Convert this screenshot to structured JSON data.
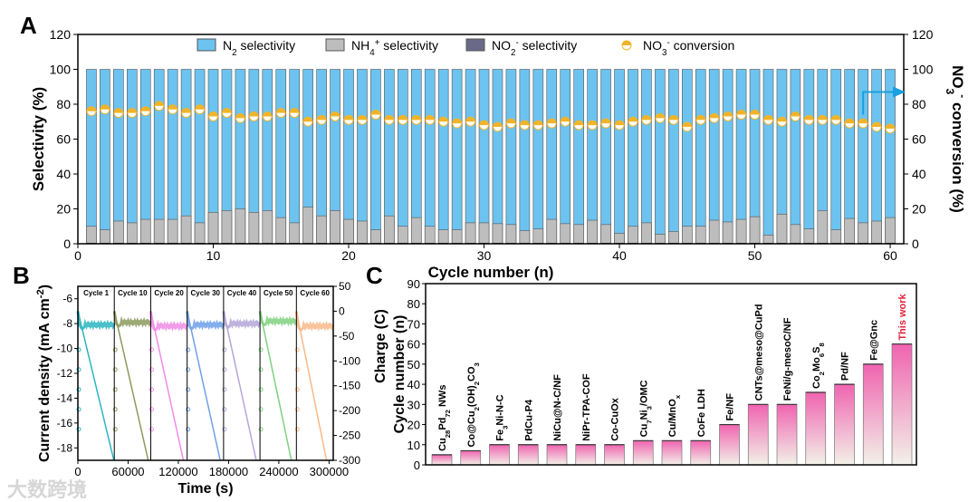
{
  "chart_data": [
    {
      "panel": "A",
      "type": "bar",
      "stacked": true,
      "xlabel": "Cycle number (n)",
      "ylabel": "Selectivity (%)",
      "ylabel_right": "NO3- conversion (%)",
      "xlim": [
        0,
        61
      ],
      "ylim": [
        0,
        120
      ],
      "y2lim": [
        0,
        120
      ],
      "xticks": [
        "0",
        "10",
        "20",
        "30",
        "40",
        "50",
        "60"
      ],
      "yticks": [
        "0",
        "20",
        "40",
        "60",
        "80",
        "100",
        "120"
      ],
      "legend_position": "top",
      "colors": {
        "N2": "#6cc3f0",
        "NH4": "#bdbdbd",
        "NO2": "#3b3b5c",
        "conv": "#f0b42a",
        "arrow": "#1aa0e0"
      },
      "legend": [
        "N2 selectivity",
        "NH4+ selectivity",
        "NO2- selectivity",
        "NO3- conversion"
      ],
      "legend_parts": [
        {
          "a": "N",
          "sub": "2",
          "sup": "",
          "b": " selectivity"
        },
        {
          "a": "NH",
          "sub": "4",
          "sup": "+",
          "b": " selectivity"
        },
        {
          "a": "NO",
          "sub": "2",
          "sup": "-",
          "b": " selectivity"
        },
        {
          "a": "NO",
          "sub": "3",
          "sup": "-",
          "b": " conversion"
        }
      ],
      "x": [
        1,
        2,
        3,
        4,
        5,
        6,
        7,
        8,
        9,
        10,
        11,
        12,
        13,
        14,
        15,
        16,
        17,
        18,
        19,
        20,
        21,
        22,
        23,
        24,
        25,
        26,
        27,
        28,
        29,
        30,
        31,
        32,
        33,
        34,
        35,
        36,
        37,
        38,
        39,
        40,
        41,
        42,
        43,
        44,
        45,
        46,
        47,
        48,
        49,
        50,
        51,
        52,
        53,
        54,
        55,
        56,
        57,
        58,
        59,
        60
      ],
      "series": [
        {
          "name": "NH4+ selectivity",
          "values": [
            10,
            8,
            13,
            12,
            14,
            14,
            14,
            16,
            12,
            18,
            19,
            20,
            18,
            19,
            15,
            12,
            21,
            16,
            19,
            14,
            13,
            8,
            16,
            10,
            15,
            10,
            8,
            8,
            12,
            12,
            11.5,
            11,
            7.5,
            8.5,
            14,
            11.5,
            11,
            13.5,
            11,
            6,
            10,
            12,
            5.5,
            7,
            10,
            10,
            13.5,
            12.5,
            14,
            15.5,
            5,
            17,
            11,
            8.5,
            19,
            8,
            14.5,
            12,
            13,
            15
          ]
        },
        {
          "name": "NO2- selectivity",
          "values": [
            0.5,
            0.5,
            0.5,
            0.5,
            0.5,
            0.5,
            0.5,
            0.5,
            0.5,
            0.5,
            0.5,
            0.5,
            0.5,
            0.5,
            0.5,
            0.5,
            0.5,
            0.5,
            0.5,
            0.5,
            0.5,
            0.5,
            0.5,
            0.5,
            0.5,
            0.5,
            0.5,
            0.5,
            0.5,
            0.5,
            0.5,
            0.5,
            0.5,
            0.5,
            0.5,
            0.5,
            0.5,
            0.5,
            0.5,
            0.5,
            0.5,
            0.5,
            0.5,
            0.5,
            0.5,
            0.5,
            0.5,
            0.5,
            0.5,
            0.5,
            0.5,
            0.5,
            0.5,
            0.5,
            0.5,
            0.5,
            0.5,
            0.5,
            0.5,
            0.5
          ]
        },
        {
          "name": "N2 selectivity",
          "values": "remainder to 100"
        },
        {
          "name": "NO3- conversion",
          "values": [
            76,
            77,
            75,
            75,
            76,
            79,
            77,
            75,
            77,
            73,
            75,
            72,
            73,
            73,
            75,
            75,
            70,
            71,
            73,
            71,
            71,
            74,
            71,
            71,
            71,
            71,
            70,
            69,
            70,
            68,
            67,
            69,
            68,
            68,
            69,
            70,
            68,
            68,
            69,
            68,
            70,
            71,
            72,
            71,
            67,
            71,
            72,
            73,
            74,
            74,
            71,
            70,
            73,
            71,
            71,
            71,
            69,
            69,
            67,
            66
          ]
        }
      ]
    },
    {
      "panel": "B",
      "type": "line",
      "xlabel": "Time (s)",
      "ylabel": "Current density (mA cm-2)",
      "ylabel_parts": {
        "a": "Current density (mA cm",
        "sup": "-2",
        "b": ")"
      },
      "ylabel_right": "Charge (C)",
      "xlim": [
        0,
        305000
      ],
      "ylim": [
        -19,
        -5
      ],
      "y2lim": [
        -300,
        50
      ],
      "xticks": [
        "0",
        "60000",
        "120000",
        "180000",
        "240000",
        "300000"
      ],
      "xtick_values": [
        0,
        60000,
        120000,
        180000,
        240000,
        300000
      ],
      "yticks": [
        "-6",
        "-8",
        "-10",
        "-12",
        "-14",
        "-16",
        "-18"
      ],
      "ytick_values": [
        -6,
        -8,
        -10,
        -12,
        -14,
        -16,
        -18
      ],
      "y2ticks": [
        "50",
        "0",
        "-50",
        "-100",
        "-150",
        "-200",
        "-250",
        "-300"
      ],
      "y2tick_values": [
        50,
        0,
        -50,
        -100,
        -150,
        -200,
        -250,
        -300
      ],
      "segments": [
        {
          "label": "Cycle 1",
          "start": 0,
          "end": 43500,
          "current": -8.1,
          "charge_end_time": 43000,
          "color": "#2bb5c0"
        },
        {
          "label": "Cycle 10",
          "start": 43500,
          "end": 87000,
          "current": -7.9,
          "charge_end_time": 84000,
          "color": "#8c9a5e"
        },
        {
          "label": "Cycle 20",
          "start": 87000,
          "end": 130500,
          "current": -8.2,
          "charge_end_time": 126000,
          "color": "#f08ce6"
        },
        {
          "label": "Cycle 30",
          "start": 130500,
          "end": 174000,
          "current": -8.1,
          "charge_end_time": 170000,
          "color": "#6fa0e8"
        },
        {
          "label": "Cycle 40",
          "start": 174000,
          "end": 217500,
          "current": -8.0,
          "charge_end_time": 213000,
          "color": "#b4a6d8"
        },
        {
          "label": "Cycle 50",
          "start": 217500,
          "end": 261000,
          "current": -7.8,
          "charge_end_time": 255000,
          "color": "#7fd07f"
        },
        {
          "label": "Cycle 60",
          "start": 261000,
          "end": 305000,
          "current": -8.2,
          "charge_end_time": 297000,
          "color": "#f8b98a"
        }
      ]
    },
    {
      "panel": "C",
      "type": "bar",
      "ylabel": "Cycle number (n)",
      "ylabel2": "Charge (C)",
      "ylim": [
        0,
        90
      ],
      "yticks": [
        "0",
        "10",
        "20",
        "30",
        "40",
        "50",
        "60",
        "70",
        "80",
        "90"
      ],
      "categories": [
        "Cu28Pd72 NWs",
        "Co@Cu2(OH)2CO3",
        "Fe3Ni-N-C",
        "PdCu-P4",
        "NiCu@N-C/NF",
        "NiPr-TPA-COF",
        "Co-CuOx",
        "Cu7Ni3/OMC",
        "Cu/MnOx",
        "CoFe LDH",
        "Fe/NF",
        "CNTs@meso@CuPd",
        "FeNi/g-mesoC/NF",
        "Co2Mo6S8",
        "Pd/NF",
        "Fe@Gnc",
        "This work"
      ],
      "category_parts": [
        [
          [
            "Cu",
            ""
          ],
          [
            "28",
            "sub"
          ],
          [
            "Pd",
            ""
          ],
          [
            "72",
            "sub"
          ],
          [
            " NWs",
            ""
          ]
        ],
        [
          [
            "Co@Cu",
            ""
          ],
          [
            "2",
            "sub"
          ],
          [
            "(OH)",
            ""
          ],
          [
            "2",
            "sub"
          ],
          [
            "CO",
            ""
          ],
          [
            "3",
            "sub"
          ]
        ],
        [
          [
            "Fe",
            ""
          ],
          [
            "3",
            "sub"
          ],
          [
            "Ni-N-C",
            ""
          ]
        ],
        [
          [
            "PdCu-P4",
            ""
          ]
        ],
        [
          [
            "NiCu@N-C/NF",
            ""
          ]
        ],
        [
          [
            "NiPr-TPA-COF",
            ""
          ]
        ],
        [
          [
            "Co-CuOx",
            ""
          ]
        ],
        [
          [
            "Cu",
            ""
          ],
          [
            "7",
            "sub"
          ],
          [
            "Ni",
            ""
          ],
          [
            "3",
            "sub"
          ],
          [
            "/OMC",
            ""
          ]
        ],
        [
          [
            "Cu/MnO",
            ""
          ],
          [
            "x",
            "sub"
          ]
        ],
        [
          [
            "CoFe LDH",
            ""
          ]
        ],
        [
          [
            "Fe/NF",
            ""
          ]
        ],
        [
          [
            "CNTs@meso@CuPd",
            ""
          ]
        ],
        [
          [
            "FeNi/g-mesoC/NF",
            ""
          ]
        ],
        [
          [
            "Co",
            ""
          ],
          [
            "2",
            "sub"
          ],
          [
            "Mo",
            ""
          ],
          [
            "6",
            "sub"
          ],
          [
            "S",
            ""
          ],
          [
            "8",
            "sub"
          ]
        ],
        [
          [
            "Pd/NF",
            ""
          ]
        ],
        [
          [
            "Fe@Gnc",
            ""
          ]
        ],
        [
          [
            "This work",
            ""
          ]
        ]
      ],
      "values": [
        5,
        7,
        10,
        10,
        10,
        10,
        10,
        12,
        12,
        12,
        20,
        30,
        30,
        36,
        40,
        50,
        60
      ],
      "colors": {
        "top": "#f064b0",
        "bottom": "#f2f1e8",
        "highlight_label": "#e0203c"
      }
    }
  ],
  "panel_labels": [
    "A",
    "B",
    "C"
  ],
  "watermark": "大数跨境"
}
